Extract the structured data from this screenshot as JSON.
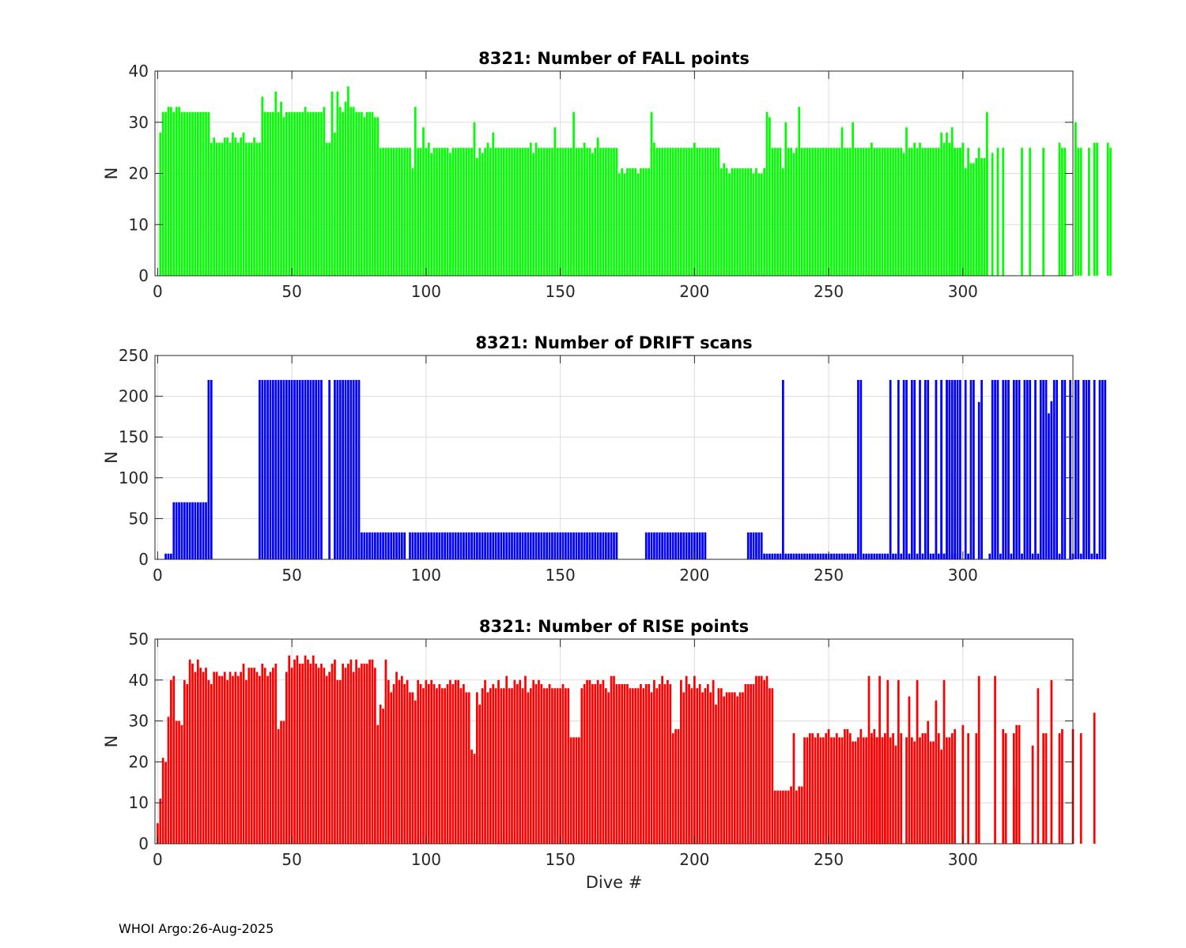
{
  "footer": "WHOI Argo:26-Aug-2025",
  "chart_data": [
    {
      "type": "bar",
      "title": "8321: Number of FALL points",
      "xlabel": "",
      "ylabel": "N",
      "xlim": [
        -1,
        341
      ],
      "ylim": [
        0,
        40
      ],
      "xticks": [
        0,
        50,
        100,
        150,
        200,
        250,
        300
      ],
      "yticks": [
        0,
        10,
        20,
        30,
        40
      ],
      "grid": true,
      "color": "#00ff00",
      "segments": [
        {
          "start": 1,
          "values": [
            28,
            32,
            32,
            33,
            33,
            32,
            33,
            33,
            32,
            32,
            32,
            32,
            32,
            32,
            32,
            32,
            32,
            32,
            32,
            26,
            27,
            26,
            26,
            26,
            27,
            27,
            26,
            28,
            27,
            26,
            27,
            28,
            26,
            26,
            26,
            27,
            26,
            26,
            35,
            32,
            32,
            32,
            32,
            36,
            32,
            34,
            31,
            32,
            32,
            32,
            32,
            32,
            32,
            32,
            33,
            32,
            32,
            32,
            32,
            32,
            32,
            33,
            26,
            26,
            36,
            28,
            36,
            33,
            32,
            34,
            37,
            33,
            33,
            32,
            32,
            32,
            31,
            32,
            32,
            32,
            31,
            31,
            25,
            25,
            25,
            25,
            25,
            25,
            25,
            25,
            25,
            25,
            25,
            25,
            21,
            33,
            25,
            25,
            29,
            25,
            26,
            24,
            25,
            25,
            25,
            25,
            25,
            25,
            24,
            25,
            25,
            25,
            25,
            25,
            25,
            25,
            25,
            30,
            23,
            25,
            24,
            25,
            26,
            25,
            28,
            25,
            25,
            25,
            25,
            25,
            25,
            25,
            25,
            25,
            25,
            25,
            25,
            25,
            26,
            24,
            26,
            25,
            25,
            25,
            25,
            25,
            25,
            29,
            25,
            25,
            25,
            25,
            25,
            25,
            32,
            25,
            25,
            25,
            26,
            25,
            25,
            24,
            25,
            27,
            25,
            25,
            25,
            25,
            25,
            25,
            25,
            20,
            21,
            20,
            21,
            21,
            21,
            21,
            20,
            21,
            21,
            21,
            21,
            32,
            26,
            25,
            25,
            25,
            25,
            25,
            25,
            25,
            25,
            25,
            25,
            25,
            25,
            25,
            25,
            26,
            25,
            25,
            25,
            25,
            25,
            25,
            25,
            25,
            25,
            21,
            22,
            21,
            20,
            21,
            21,
            21,
            21,
            21,
            21,
            21,
            21,
            20,
            21,
            20,
            20,
            21,
            32,
            31,
            25,
            25,
            25,
            25,
            21,
            30,
            25,
            25,
            24,
            25,
            33,
            25,
            25,
            25,
            25,
            25,
            25,
            25,
            25,
            25,
            25,
            25,
            25,
            25,
            25,
            25,
            29,
            25,
            25,
            25,
            30,
            25,
            25,
            25,
            25,
            25,
            25,
            26,
            25,
            25,
            25,
            25,
            25,
            25,
            25,
            25,
            25,
            25,
            25,
            24,
            29,
            25,
            25,
            26,
            25,
            26,
            25,
            25,
            25,
            25,
            25,
            25,
            25,
            28,
            26,
            28,
            25,
            29,
            25,
            25,
            25,
            26,
            21,
            21,
            22,
            22,
            23,
            23,
            23,
            23,
            32
          ]
        },
        {
          "start": 295,
          "values": [
            26,
            26,
            25,
            0,
            25,
            0,
            0,
            25,
            0,
            0,
            0,
            25,
            0,
            0,
            25,
            0,
            24,
            0,
            25,
            0,
            25,
            0,
            0,
            0,
            0,
            0,
            0,
            25,
            0,
            0,
            25,
            0,
            0,
            0,
            0,
            25,
            0,
            0,
            0,
            0,
            0,
            26,
            25,
            25,
            0,
            0,
            0,
            30,
            25,
            25,
            0,
            0,
            25,
            0,
            26,
            26,
            0,
            0,
            0,
            26,
            25
          ]
        }
      ]
    },
    {
      "type": "bar",
      "title": "8321: Number of DRIFT scans",
      "xlabel": "",
      "ylabel": "N",
      "xlim": [
        -1,
        341
      ],
      "ylim": [
        0,
        250
      ],
      "xticks": [
        0,
        50,
        100,
        150,
        200,
        250,
        300
      ],
      "yticks": [
        0,
        50,
        100,
        150,
        200,
        250
      ],
      "grid": true,
      "color": "#0000ff",
      "segments": [
        {
          "start": 3,
          "values": [
            7,
            7,
            7,
            70,
            70,
            70,
            70,
            70,
            70,
            70,
            70,
            70,
            70,
            70,
            70,
            70,
            220,
            220
          ]
        },
        {
          "start": 38,
          "values": [
            220,
            220,
            220,
            220,
            220,
            220,
            220,
            220,
            220,
            220,
            220,
            220,
            220,
            220,
            220,
            220,
            220,
            220,
            220,
            220,
            220,
            220,
            220,
            220
          ]
        },
        {
          "start": 64,
          "values": [
            220
          ]
        },
        {
          "start": 66,
          "values": [
            220,
            220,
            220,
            220,
            220,
            220,
            220,
            220,
            220,
            220,
            33,
            33,
            33,
            33,
            33,
            33,
            33,
            33,
            33,
            33,
            33,
            33,
            33,
            33,
            33,
            33,
            33
          ]
        },
        {
          "start": 94,
          "values": [
            33,
            33,
            33,
            33,
            33,
            33,
            33,
            33,
            33,
            33,
            33,
            33,
            33,
            33,
            33,
            33,
            33,
            33,
            33,
            33,
            33,
            33,
            33,
            33,
            33,
            33,
            33,
            33,
            33,
            33,
            33,
            33,
            33,
            33,
            33,
            33,
            33,
            33,
            33,
            33,
            33,
            33,
            33,
            33,
            33,
            33,
            33,
            33,
            33,
            33,
            33,
            33,
            33,
            33,
            33,
            33,
            33,
            33,
            33,
            33,
            33,
            33,
            33,
            33,
            33,
            33,
            33,
            33,
            33,
            33,
            33,
            33,
            33,
            33,
            33,
            33,
            33,
            33
          ]
        },
        {
          "start": 182,
          "values": [
            33,
            33,
            33,
            33,
            33,
            33,
            33,
            33,
            33,
            33,
            33,
            33,
            33,
            33,
            33,
            33,
            33,
            33,
            33,
            33,
            33,
            33,
            33
          ]
        },
        {
          "start": 220,
          "values": [
            33,
            33,
            33,
            33,
            33,
            33,
            7,
            7,
            7,
            7,
            7,
            7,
            7,
            220,
            7,
            7,
            7,
            7,
            7,
            7,
            7,
            7,
            7,
            7,
            7,
            7,
            7,
            7,
            7,
            7,
            7,
            7,
            7,
            7,
            7,
            7,
            7,
            7,
            7,
            7,
            7,
            220,
            220,
            7,
            7,
            7,
            7,
            7,
            7,
            7,
            7,
            7,
            7,
            220,
            7,
            7,
            220,
            7,
            220,
            220,
            7,
            220,
            220,
            7,
            220,
            7,
            220,
            220,
            7,
            7,
            220,
            7,
            220,
            7,
            220,
            220,
            7,
            7,
            220
          ]
        },
        {
          "start": 290,
          "values": [
            220,
            0,
            220,
            7,
            220,
            0,
            220,
            220,
            7,
            220,
            0,
            220,
            7,
            220,
            220,
            0,
            193,
            220,
            0,
            0,
            7,
            220,
            220,
            220,
            7,
            220,
            220,
            220,
            7,
            220,
            220,
            220,
            7,
            220,
            220,
            220,
            7,
            220,
            7,
            220,
            220,
            220,
            179,
            194,
            220,
            220,
            7,
            220,
            220,
            0,
            220,
            7,
            220,
            220,
            7,
            220,
            220,
            220,
            7,
            220,
            7,
            220,
            220,
            220
          ]
        }
      ]
    },
    {
      "type": "bar",
      "title": "8321: Number of RISE points",
      "xlabel": "Dive #",
      "ylabel": "N",
      "xlim": [
        -1,
        341
      ],
      "ylim": [
        0,
        50
      ],
      "xticks": [
        0,
        50,
        100,
        150,
        200,
        250,
        300
      ],
      "yticks": [
        0,
        10,
        20,
        30,
        40,
        50
      ],
      "grid": true,
      "color": "#ff0000",
      "segments": [
        {
          "start": 0,
          "values": [
            5,
            11,
            21,
            20,
            31,
            40,
            41,
            30,
            30,
            29,
            40,
            39,
            45,
            44,
            42,
            45,
            43,
            42,
            43,
            40,
            39,
            42,
            42,
            41,
            41,
            42,
            40,
            42,
            41,
            42,
            41,
            42,
            44,
            40,
            43,
            43,
            43,
            42,
            41,
            44,
            43,
            41,
            42,
            43,
            44,
            28,
            30,
            30,
            42,
            46,
            43,
            45,
            46,
            44,
            44,
            46,
            45,
            44,
            46,
            44,
            43,
            44,
            43,
            41,
            42,
            44,
            45,
            40,
            40,
            44,
            43,
            44,
            45,
            42,
            45,
            43,
            44,
            44,
            44,
            45,
            45,
            43,
            29,
            34,
            33,
            45,
            40,
            37,
            39,
            42,
            40,
            41,
            39,
            40,
            37,
            37,
            35,
            40,
            39,
            38,
            40,
            39,
            40,
            39,
            38,
            39,
            38,
            38,
            39,
            40,
            39,
            40,
            40,
            38,
            39,
            37,
            37,
            23,
            22,
            37,
            34,
            38,
            40,
            37,
            38,
            39,
            38,
            40,
            38,
            38,
            41,
            38,
            38,
            40,
            39,
            40,
            38,
            41,
            37,
            38,
            40,
            39,
            40,
            39,
            38,
            38,
            39,
            38,
            38,
            38,
            38,
            39,
            38,
            38,
            26,
            26,
            26,
            26,
            38,
            39,
            40,
            40,
            39,
            39,
            40,
            39,
            40,
            38,
            37,
            41,
            41,
            39,
            39,
            39,
            39,
            39,
            38,
            38,
            38,
            38,
            39,
            38,
            39,
            39,
            37,
            40,
            38,
            39,
            41,
            39,
            40,
            39,
            27,
            28,
            28,
            40,
            37,
            41,
            39,
            38,
            41,
            38,
            39,
            37,
            38,
            39,
            37,
            40,
            34,
            38,
            38,
            36,
            37,
            37,
            37,
            37,
            36,
            37,
            37,
            39,
            39,
            39,
            39,
            41,
            41,
            41,
            40,
            41,
            38,
            38,
            13,
            13,
            13,
            13,
            13,
            13,
            14,
            27,
            13,
            14,
            14,
            26,
            26,
            27,
            27,
            26,
            27,
            26,
            26,
            27,
            28,
            26,
            26,
            27,
            26,
            26,
            28,
            28,
            27,
            25,
            25,
            26,
            28,
            26,
            26,
            26,
            26,
            26,
            26,
            26,
            26,
            26,
            27
          ]
        },
        {
          "start": 265,
          "values": [
            41,
            27,
            28,
            26,
            41,
            26,
            27,
            40,
            26,
            27,
            24,
            40,
            27,
            0,
            26,
            36,
            26,
            25,
            40,
            26,
            27,
            27,
            30,
            25,
            25,
            35,
            27,
            23,
            40,
            26,
            26,
            27,
            28,
            0,
            0,
            29,
            0,
            27,
            0,
            0,
            27,
            41,
            0,
            0,
            0,
            0,
            0,
            41,
            0,
            0,
            28,
            27,
            0,
            0,
            14,
            13
          ]
        },
        {
          "start": 319,
          "values": [
            27,
            29,
            29,
            0,
            0,
            0,
            0,
            24,
            0,
            38,
            0,
            27,
            27,
            0,
            40,
            0,
            0,
            27,
            28,
            0,
            0,
            0,
            28,
            0,
            0,
            27,
            0,
            0,
            0,
            0,
            32
          ]
        }
      ]
    }
  ]
}
